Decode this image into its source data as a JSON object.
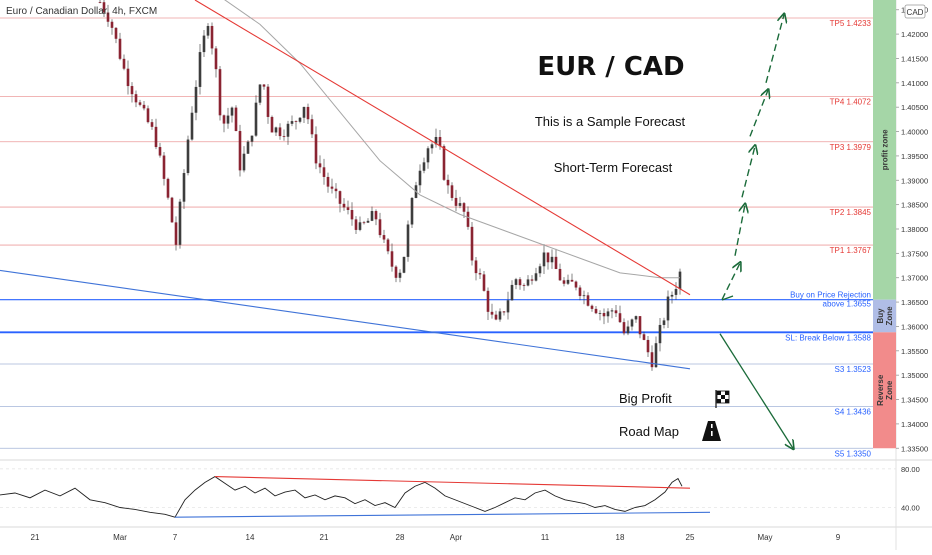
{
  "chart_data": {
    "type": "candlestick",
    "instrument": "Euro / Canadian Dollar, 4h, FXCM",
    "currency_badge": "CAD",
    "title": "EUR / CAD",
    "subtitles": [
      "This is a Sample Forecast",
      "Short-Term Forecast"
    ],
    "annotations": {
      "big_profit": "Big Profit",
      "road_map": "Road Map"
    },
    "price_axis": {
      "range": [
        1.333,
        1.427
      ],
      "ticks": [
        "1.42500",
        "1.42000",
        "1.41500",
        "1.41000",
        "1.40500",
        "1.40000",
        "1.39500",
        "1.39000",
        "1.38500",
        "1.38000",
        "1.37500",
        "1.37000",
        "1.36500",
        "1.36000",
        "1.35500",
        "1.35000",
        "1.34500",
        "1.34000",
        "1.33500"
      ]
    },
    "time_axis": {
      "range_bars": [
        0,
        680
      ],
      "ticks": [
        {
          "label": "21",
          "bar": 25
        },
        {
          "label": "Mar",
          "bar": 110
        },
        {
          "label": "7",
          "bar": 165
        },
        {
          "label": "14",
          "bar": 240
        },
        {
          "label": "21",
          "bar": 314
        },
        {
          "label": "28",
          "bar": 390
        },
        {
          "label": "Apr",
          "bar": 446
        },
        {
          "label": "11",
          "bar": 535
        },
        {
          "label": "18",
          "bar": 610
        },
        {
          "label": "25",
          "bar": 680
        },
        {
          "label": "May",
          "bar": 755
        },
        {
          "label": "9",
          "bar": 828
        }
      ]
    },
    "levels": [
      {
        "name": "TP5",
        "label": "TP5  1.4233",
        "price": 1.4233,
        "color": "#e57373"
      },
      {
        "name": "TP4",
        "label": "TP4  1.4072",
        "price": 1.4072,
        "color": "#e57373"
      },
      {
        "name": "TP3",
        "label": "TP3  1.3979",
        "price": 1.3979,
        "color": "#e57373"
      },
      {
        "name": "TP2",
        "label": "TP2  1.3845",
        "price": 1.3845,
        "color": "#e57373"
      },
      {
        "name": "TP1",
        "label": "TP1  1.3767",
        "price": 1.3767,
        "color": "#e57373"
      },
      {
        "name": "buy",
        "label": "Buy on Price Rejection",
        "label2": "above 1.3655",
        "price": 1.3655,
        "color": "#2962ff"
      },
      {
        "name": "sl",
        "label": "SL: Break Below 1.3588",
        "price": 1.3588,
        "color": "#2962ff"
      },
      {
        "name": "S3",
        "label": "S3  1.3523",
        "price": 1.3523,
        "color": "#7e95c8"
      },
      {
        "name": "S4",
        "label": "S4  1.3436",
        "price": 1.3436,
        "color": "#7e95c8"
      },
      {
        "name": "S5",
        "label": "S5  1.3350",
        "price": 1.335,
        "color": "#7e95c8"
      }
    ],
    "zones": [
      {
        "label": "profit zone",
        "from": 1.3655,
        "to": 1.427,
        "color": "#a5d6a7"
      },
      {
        "label": "Buy Zone",
        "from": 1.3588,
        "to": 1.3655,
        "color": "#b0bde6"
      },
      {
        "label": "Reverse Zone",
        "from": 1.335,
        "to": 1.3588,
        "color": "#f28b8b"
      }
    ],
    "trendlines": [
      {
        "name": "resistance",
        "color": "#e53935",
        "from": {
          "bar": 195,
          "price": 1.427
        },
        "to": {
          "bar": 680,
          "price": 1.3665
        }
      },
      {
        "name": "support",
        "color": "#3f73d8",
        "from": {
          "bar": 0,
          "price": 1.3715
        },
        "to": {
          "bar": 680,
          "price": 1.3513
        }
      }
    ],
    "forecast_up": [
      {
        "from": {
          "bar": 722,
          "price": 1.3655
        },
        "to": {
          "bar": 740,
          "price": 1.373
        }
      },
      {
        "from": {
          "bar": 735,
          "price": 1.3745
        },
        "to": {
          "bar": 745,
          "price": 1.385
        }
      },
      {
        "from": {
          "bar": 742,
          "price": 1.3865
        },
        "to": {
          "bar": 755,
          "price": 1.397
        }
      },
      {
        "from": {
          "bar": 750,
          "price": 1.399
        },
        "to": {
          "bar": 768,
          "price": 1.4085
        }
      },
      {
        "from": {
          "bar": 766,
          "price": 1.41
        },
        "to": {
          "bar": 784,
          "price": 1.424
        }
      }
    ],
    "forecast_down": {
      "from": {
        "bar": 720,
        "price": 1.3585
      },
      "to": {
        "bar": 793,
        "price": 1.335
      }
    },
    "close_path": [
      [
        0,
        1.43
      ],
      [
        80,
        1.429
      ],
      [
        96,
        1.428
      ],
      [
        110,
        1.423
      ],
      [
        125,
        1.412
      ],
      [
        140,
        1.405
      ],
      [
        155,
        1.399
      ],
      [
        168,
        1.386
      ],
      [
        176,
        1.377
      ],
      [
        182,
        1.388
      ],
      [
        190,
        1.402
      ],
      [
        200,
        1.415
      ],
      [
        208,
        1.423
      ],
      [
        215,
        1.414
      ],
      [
        222,
        1.401
      ],
      [
        232,
        1.405
      ],
      [
        240,
        1.393
      ],
      [
        250,
        1.398
      ],
      [
        262,
        1.412
      ],
      [
        270,
        1.401
      ],
      [
        282,
        1.4
      ],
      [
        295,
        1.402
      ],
      [
        305,
        1.406
      ],
      [
        315,
        1.395
      ],
      [
        330,
        1.388
      ],
      [
        345,
        1.384
      ],
      [
        360,
        1.38
      ],
      [
        375,
        1.383
      ],
      [
        385,
        1.376
      ],
      [
        395,
        1.371
      ],
      [
        402,
        1.372
      ],
      [
        410,
        1.383
      ],
      [
        418,
        1.392
      ],
      [
        428,
        1.397
      ],
      [
        438,
        1.398
      ],
      [
        446,
        1.389
      ],
      [
        455,
        1.386
      ],
      [
        465,
        1.383
      ],
      [
        472,
        1.374
      ],
      [
        480,
        1.37
      ],
      [
        488,
        1.364
      ],
      [
        495,
        1.36
      ],
      [
        505,
        1.364
      ],
      [
        515,
        1.37
      ],
      [
        525,
        1.368
      ],
      [
        535,
        1.372
      ],
      [
        545,
        1.375
      ],
      [
        555,
        1.372
      ],
      [
        565,
        1.368
      ],
      [
        575,
        1.369
      ],
      [
        585,
        1.366
      ],
      [
        595,
        1.364
      ],
      [
        605,
        1.362
      ],
      [
        615,
        1.364
      ],
      [
        625,
        1.358
      ],
      [
        635,
        1.362
      ],
      [
        645,
        1.356
      ],
      [
        652,
        1.353
      ],
      [
        660,
        1.359
      ],
      [
        668,
        1.365
      ],
      [
        675,
        1.368
      ],
      [
        680,
        1.371
      ]
    ],
    "ma_path": [
      [
        218,
        1.428
      ],
      [
        260,
        1.422
      ],
      [
        300,
        1.414
      ],
      [
        340,
        1.404
      ],
      [
        380,
        1.394
      ],
      [
        420,
        1.387
      ],
      [
        460,
        1.383
      ],
      [
        500,
        1.38
      ],
      [
        540,
        1.377
      ],
      [
        580,
        1.374
      ],
      [
        620,
        1.371
      ],
      [
        660,
        1.37
      ],
      [
        680,
        1.37
      ]
    ],
    "oscillator": {
      "ticks": [
        "80.00",
        "40.00"
      ],
      "range": [
        25,
        85
      ],
      "path": [
        [
          0,
          53
        ],
        [
          15,
          55
        ],
        [
          30,
          50
        ],
        [
          45,
          58
        ],
        [
          60,
          52
        ],
        [
          75,
          60
        ],
        [
          90,
          48
        ],
        [
          105,
          45
        ],
        [
          120,
          40
        ],
        [
          135,
          38
        ],
        [
          150,
          35
        ],
        [
          165,
          33
        ],
        [
          175,
          30
        ],
        [
          185,
          48
        ],
        [
          195,
          58
        ],
        [
          205,
          66
        ],
        [
          215,
          72
        ],
        [
          225,
          65
        ],
        [
          235,
          58
        ],
        [
          245,
          62
        ],
        [
          255,
          55
        ],
        [
          265,
          60
        ],
        [
          275,
          52
        ],
        [
          285,
          56
        ],
        [
          295,
          58
        ],
        [
          305,
          50
        ],
        [
          315,
          53
        ],
        [
          325,
          48
        ],
        [
          335,
          52
        ],
        [
          345,
          50
        ],
        [
          355,
          44
        ],
        [
          365,
          48
        ],
        [
          375,
          42
        ],
        [
          385,
          45
        ],
        [
          395,
          40
        ],
        [
          405,
          55
        ],
        [
          415,
          62
        ],
        [
          425,
          66
        ],
        [
          435,
          60
        ],
        [
          445,
          52
        ],
        [
          455,
          48
        ],
        [
          465,
          44
        ],
        [
          475,
          40
        ],
        [
          485,
          36
        ],
        [
          495,
          40
        ],
        [
          505,
          45
        ],
        [
          515,
          50
        ],
        [
          525,
          48
        ],
        [
          535,
          55
        ],
        [
          545,
          58
        ],
        [
          555,
          52
        ],
        [
          565,
          48
        ],
        [
          575,
          46
        ],
        [
          585,
          44
        ],
        [
          595,
          40
        ],
        [
          605,
          42
        ],
        [
          615,
          38
        ],
        [
          625,
          36
        ],
        [
          635,
          40
        ],
        [
          645,
          42
        ],
        [
          655,
          48
        ],
        [
          665,
          56
        ],
        [
          672,
          66
        ],
        [
          678,
          70
        ],
        [
          682,
          62
        ]
      ],
      "trend_red": {
        "from": [
          215,
          72
        ],
        "to": [
          690,
          60
        ]
      },
      "trend_blue": {
        "from": [
          175,
          30
        ],
        "to": [
          710,
          35
        ]
      }
    }
  }
}
